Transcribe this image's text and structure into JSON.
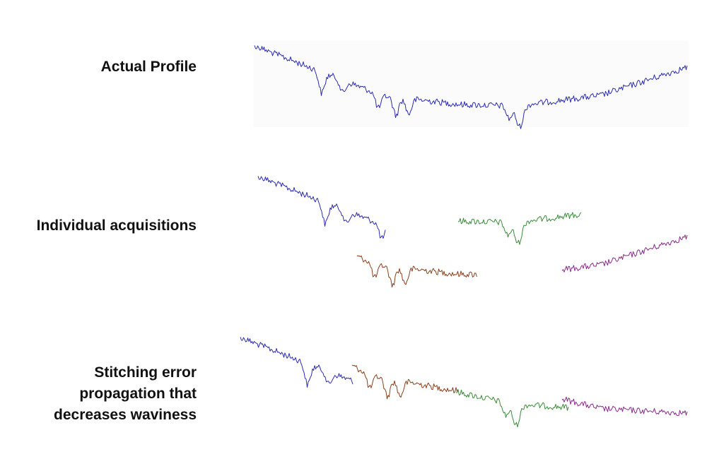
{
  "rows": [
    {
      "label": "Actual Profile"
    },
    {
      "label": "Individual acquisitions"
    },
    {
      "label": "Stitching error propagation that decreases waviness"
    }
  ]
}
